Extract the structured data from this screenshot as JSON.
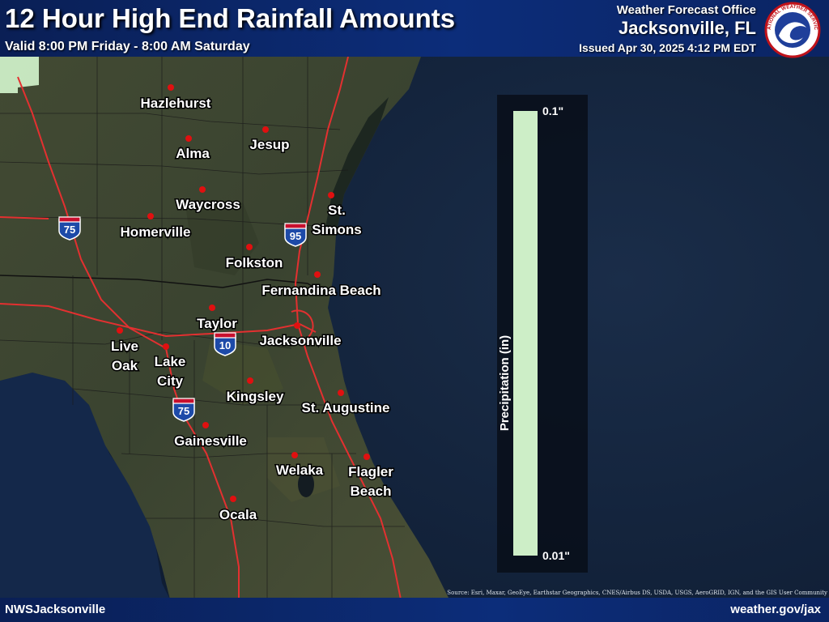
{
  "header": {
    "title": "12 Hour High End Rainfall Amounts",
    "valid": "Valid 8:00 PM Friday - 8:00 AM Saturday",
    "office_label": "Weather Forecast Office",
    "office_name": "Jacksonville, FL",
    "issued": "Issued Apr 30, 2025 4:12 PM EDT",
    "logo_text": "NATIONAL WEATHER SERVICE"
  },
  "legend": {
    "title": "Precipitation (in)",
    "max_label": "0.1\"",
    "min_label": "0.01\"",
    "bar_color": "#cdeec7"
  },
  "cities": [
    {
      "name": "Hazlehurst"
    },
    {
      "name": "Alma"
    },
    {
      "name": "Jesup"
    },
    {
      "name": "Waycross"
    },
    {
      "name": "St. Simons"
    },
    {
      "name": "Homerville"
    },
    {
      "name": "Folkston"
    },
    {
      "name": "Fernandina Beach"
    },
    {
      "name": "Taylor"
    },
    {
      "name": "Jacksonville"
    },
    {
      "name": "Live Oak"
    },
    {
      "name": "Lake City"
    },
    {
      "name": "Kingsley"
    },
    {
      "name": "St. Augustine"
    },
    {
      "name": "Gainesville"
    },
    {
      "name": "Welaka"
    },
    {
      "name": "Flagler Beach"
    },
    {
      "name": "Ocala"
    }
  ],
  "interstates": [
    {
      "number": "75"
    },
    {
      "number": "95"
    },
    {
      "number": "10"
    },
    {
      "number": "75"
    }
  ],
  "footer": {
    "left": "NWSJacksonville",
    "right": "weather.gov/jax",
    "attribution": "Source: Esri, Maxar, GeoEye, Earthstar Geographics, CNES/Airbus DS, USDA, USGS, AeroGRID, IGN, and the GIS User Community"
  },
  "colors": {
    "ocean": "#13233b",
    "land": "#3d4630",
    "marker": "#e01010",
    "interstate_road": "#e33030",
    "rain_fill": "#cdeec7"
  }
}
